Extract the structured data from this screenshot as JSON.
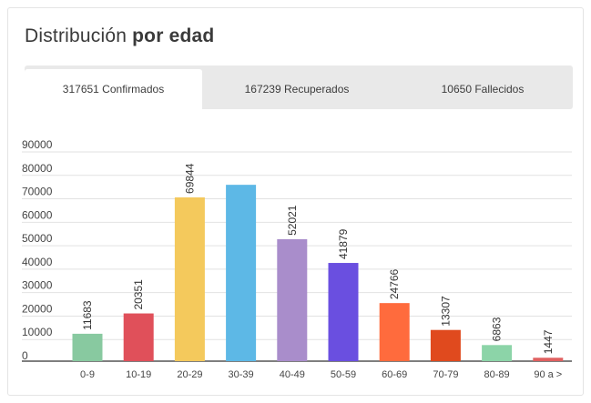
{
  "header": {
    "title_regular": "Distribución",
    "title_bold": "por edad"
  },
  "tabs": [
    {
      "label": "317651 Confirmados",
      "active": true
    },
    {
      "label": "167239 Recuperados",
      "active": false
    },
    {
      "label": "10650 Fallecidos",
      "active": false
    }
  ],
  "chart_data": {
    "type": "bar",
    "categories": [
      "0-9",
      "10-19",
      "20-29",
      "30-39",
      "40-49",
      "50-59",
      "60-69",
      "70-79",
      "80-89",
      "90 a >"
    ],
    "values": [
      11683,
      20351,
      69844,
      75200,
      52021,
      41879,
      24766,
      13307,
      6863,
      1447
    ],
    "data_labels": [
      "11683",
      "20351",
      "69844",
      "",
      "52021",
      "41879",
      "24766",
      "13307",
      "6863",
      "1447"
    ],
    "colors": [
      "#88c9a0",
      "#e0505a",
      "#f4c95c",
      "#5db8e6",
      "#a98dcb",
      "#6a4fe0",
      "#ff6b3d",
      "#e04a1e",
      "#8cd4a8",
      "#e06060"
    ],
    "yticks": [
      "90000",
      "80000",
      "70000",
      "60000",
      "50000",
      "40000",
      "30000",
      "20000",
      "10000",
      "0"
    ],
    "ylim": [
      0,
      90000
    ],
    "grid": true
  }
}
